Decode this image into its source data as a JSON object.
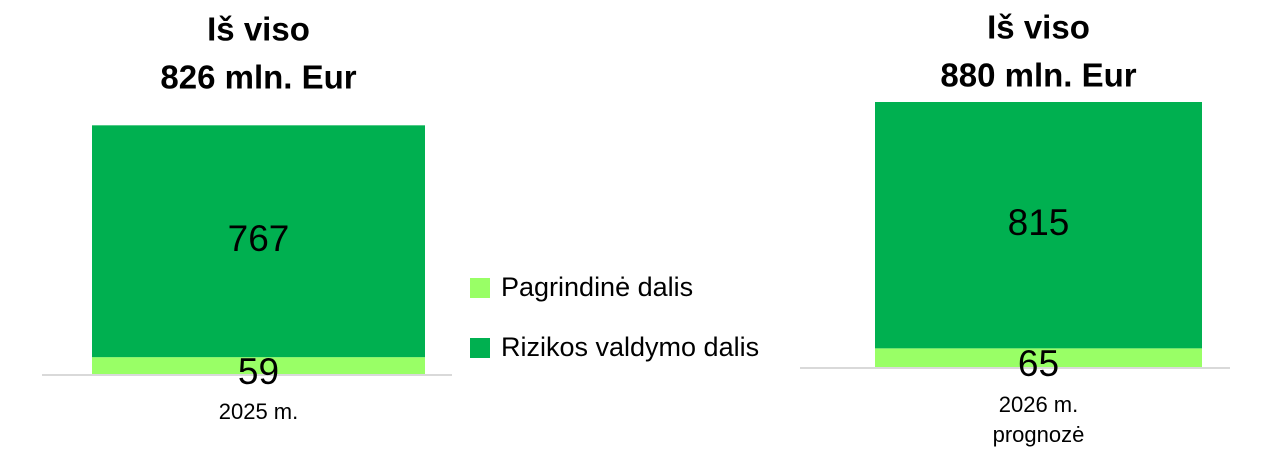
{
  "chart_data": {
    "type": "stacked_bar",
    "annotations": [
      [
        "Iš viso",
        "826 mln. Eur"
      ],
      [
        "Iš viso",
        "880 mln. Eur"
      ]
    ],
    "categories": [
      "2025 m.",
      "2026 m. prognozė"
    ],
    "series": [
      {
        "name": "Pagrindinė dalis",
        "color": "#99ff66",
        "values": [
          59,
          65
        ]
      },
      {
        "name": "Rizikos valdymo dalis",
        "color": "#00b050",
        "values": [
          767,
          815
        ]
      }
    ],
    "ylim": [
      0,
      880
    ],
    "legend": "center"
  }
}
